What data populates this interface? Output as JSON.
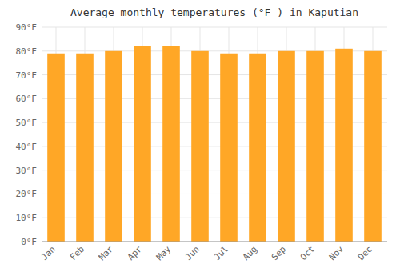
{
  "chart_data": {
    "type": "bar",
    "title": "Average monthly temperatures (°F ) in Kaputian",
    "categories": [
      "Jan",
      "Feb",
      "Mar",
      "Apr",
      "May",
      "Jun",
      "Jul",
      "Aug",
      "Sep",
      "Oct",
      "Nov",
      "Dec"
    ],
    "values": [
      79,
      79,
      80,
      82,
      82,
      80,
      79,
      79,
      80,
      80,
      81,
      80
    ],
    "color": "#FFA726",
    "ylim": [
      0,
      90
    ],
    "yticks": [
      {
        "value": 0,
        "label": "0°F"
      },
      {
        "value": 10,
        "label": "10°F"
      },
      {
        "value": 20,
        "label": "20°F"
      },
      {
        "value": 30,
        "label": "30°F"
      },
      {
        "value": 40,
        "label": "40°F"
      },
      {
        "value": 50,
        "label": "50°F"
      },
      {
        "value": 60,
        "label": "60°F"
      },
      {
        "value": 70,
        "label": "70°F"
      },
      {
        "value": 80,
        "label": "80°F"
      },
      {
        "value": 90,
        "label": "90°F"
      }
    ],
    "grid": true
  }
}
